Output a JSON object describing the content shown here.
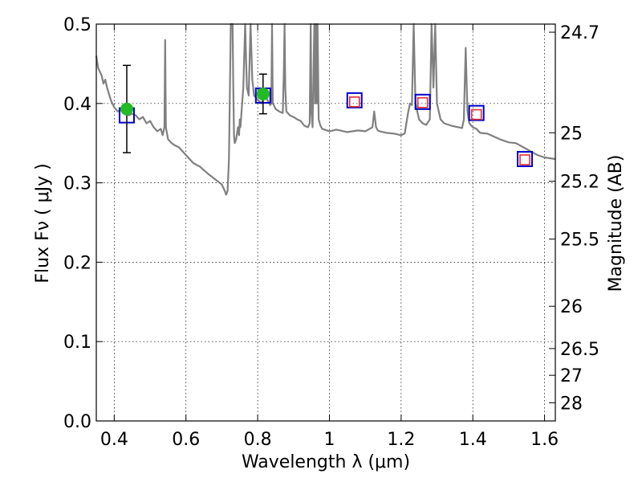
{
  "chart_data": {
    "type": "line",
    "title": "",
    "xlabel": "Wavelength  λ (μm)",
    "ylabel": "Flux  Fν  ( μJy )",
    "y2label": "Magnitude (AB)",
    "xlim": [
      0.35,
      1.63
    ],
    "ylim": [
      0.0,
      0.5
    ],
    "grid": true,
    "x_ticks": [
      0.4,
      0.6,
      0.8,
      1.0,
      1.2,
      1.4,
      1.6
    ],
    "x_tick_labels": [
      "0.4",
      "0.6",
      "0.8",
      "1",
      "1.2",
      "1.4",
      "1.6"
    ],
    "y_ticks": [
      0.0,
      0.1,
      0.2,
      0.3,
      0.4,
      0.5
    ],
    "y_tick_labels": [
      "0.0",
      "0.1",
      "0.2",
      "0.3",
      "0.4",
      "0.5"
    ],
    "y2_ticks": [
      {
        "label": "24.7",
        "flux": 0.4898
      },
      {
        "label": "25",
        "flux": 0.3631
      },
      {
        "label": "25.2",
        "flux": 0.302
      },
      {
        "label": "25.5",
        "flux": 0.2291
      },
      {
        "label": "26",
        "flux": 0.1445
      },
      {
        "label": "26.5",
        "flux": 0.0912
      },
      {
        "label": "27",
        "flux": 0.0575
      },
      {
        "label": "28",
        "flux": 0.0229
      }
    ],
    "series": [
      {
        "type": "line",
        "color": "#808080",
        "x": [
          0.35,
          0.355,
          0.36,
          0.365,
          0.37,
          0.375,
          0.38,
          0.39,
          0.4,
          0.41,
          0.42,
          0.43,
          0.44,
          0.45,
          0.46,
          0.47,
          0.48,
          0.49,
          0.5,
          0.51,
          0.52,
          0.53,
          0.535,
          0.54,
          0.542,
          0.544,
          0.55,
          0.56,
          0.57,
          0.58,
          0.59,
          0.6,
          0.62,
          0.64,
          0.66,
          0.68,
          0.7,
          0.708,
          0.712,
          0.716,
          0.72,
          0.725,
          0.73,
          0.732,
          0.734,
          0.736,
          0.74,
          0.745,
          0.748,
          0.75,
          0.752,
          0.755,
          0.76,
          0.765,
          0.768,
          0.77,
          0.775,
          0.78,
          0.785,
          0.79,
          0.8,
          0.81,
          0.82,
          0.83,
          0.835,
          0.838,
          0.84,
          0.842,
          0.845,
          0.85,
          0.86,
          0.87,
          0.873,
          0.875,
          0.877,
          0.88,
          0.89,
          0.9,
          0.91,
          0.92,
          0.93,
          0.94,
          0.945,
          0.948,
          0.95,
          0.953,
          0.956,
          0.958,
          0.96,
          0.962,
          0.965,
          0.967,
          0.97,
          0.975,
          0.98,
          1.0,
          1.02,
          1.05,
          1.08,
          1.1,
          1.12,
          1.125,
          1.13,
          1.135,
          1.14,
          1.16,
          1.18,
          1.2,
          1.21,
          1.22,
          1.225,
          1.23,
          1.235,
          1.24,
          1.25,
          1.26,
          1.27,
          1.28,
          1.285,
          1.29,
          1.295,
          1.3,
          1.31,
          1.32,
          1.34,
          1.36,
          1.37,
          1.375,
          1.38,
          1.385,
          1.39,
          1.4,
          1.41,
          1.42,
          1.44,
          1.46,
          1.48,
          1.5,
          1.52,
          1.54,
          1.56,
          1.58,
          1.6,
          1.63
        ],
        "y": [
          0.46,
          0.445,
          0.44,
          0.435,
          0.425,
          0.43,
          0.42,
          0.405,
          0.395,
          0.39,
          0.392,
          0.39,
          0.385,
          0.387,
          0.385,
          0.38,
          0.383,
          0.375,
          0.378,
          0.37,
          0.365,
          0.368,
          0.36,
          0.37,
          0.48,
          0.37,
          0.355,
          0.35,
          0.347,
          0.345,
          0.34,
          0.335,
          0.325,
          0.32,
          0.312,
          0.305,
          0.298,
          0.29,
          0.285,
          0.29,
          0.33,
          0.5,
          0.51,
          0.42,
          0.36,
          0.35,
          0.355,
          0.37,
          0.36,
          0.38,
          0.37,
          0.39,
          0.42,
          0.5,
          0.45,
          0.42,
          0.41,
          0.5,
          0.43,
          0.41,
          0.405,
          0.4,
          0.41,
          0.402,
          0.398,
          0.4,
          0.5,
          0.4,
          0.398,
          0.393,
          0.39,
          0.388,
          0.44,
          0.5,
          0.42,
          0.39,
          0.385,
          0.383,
          0.38,
          0.378,
          0.372,
          0.37,
          0.375,
          0.5,
          0.39,
          0.37,
          0.45,
          0.51,
          0.4,
          0.51,
          0.4,
          0.51,
          0.38,
          0.372,
          0.368,
          0.365,
          0.367,
          0.364,
          0.366,
          0.365,
          0.37,
          0.39,
          0.37,
          0.366,
          0.365,
          0.363,
          0.362,
          0.36,
          0.362,
          0.39,
          0.4,
          0.398,
          0.51,
          0.4,
          0.38,
          0.375,
          0.373,
          0.38,
          0.51,
          0.42,
          0.51,
          0.4,
          0.38,
          0.375,
          0.372,
          0.37,
          0.369,
          0.38,
          0.47,
          0.39,
          0.375,
          0.37,
          0.368,
          0.363,
          0.362,
          0.358,
          0.354,
          0.351,
          0.35,
          0.345,
          0.34,
          0.335,
          0.332,
          0.33
        ]
      },
      {
        "type": "scatter",
        "name": "blue squares",
        "color": "#0000cc",
        "x": [
          0.435,
          0.815,
          1.07,
          1.26,
          1.41,
          1.545
        ],
        "y": [
          0.385,
          0.41,
          0.404,
          0.402,
          0.388,
          0.33
        ]
      },
      {
        "type": "scatter",
        "name": "red squares",
        "color": "#e03030",
        "x": [
          1.07,
          1.26,
          1.41,
          1.545
        ],
        "y": [
          0.402,
          0.401,
          0.386,
          0.329
        ]
      },
      {
        "type": "scatter",
        "name": "green circles",
        "color": "#22bb22",
        "x": [
          0.435,
          0.815
        ],
        "y": [
          0.393,
          0.412
        ],
        "yerr_low": [
          0.055,
          0.025
        ],
        "yerr_high": [
          0.055,
          0.025
        ]
      }
    ]
  }
}
